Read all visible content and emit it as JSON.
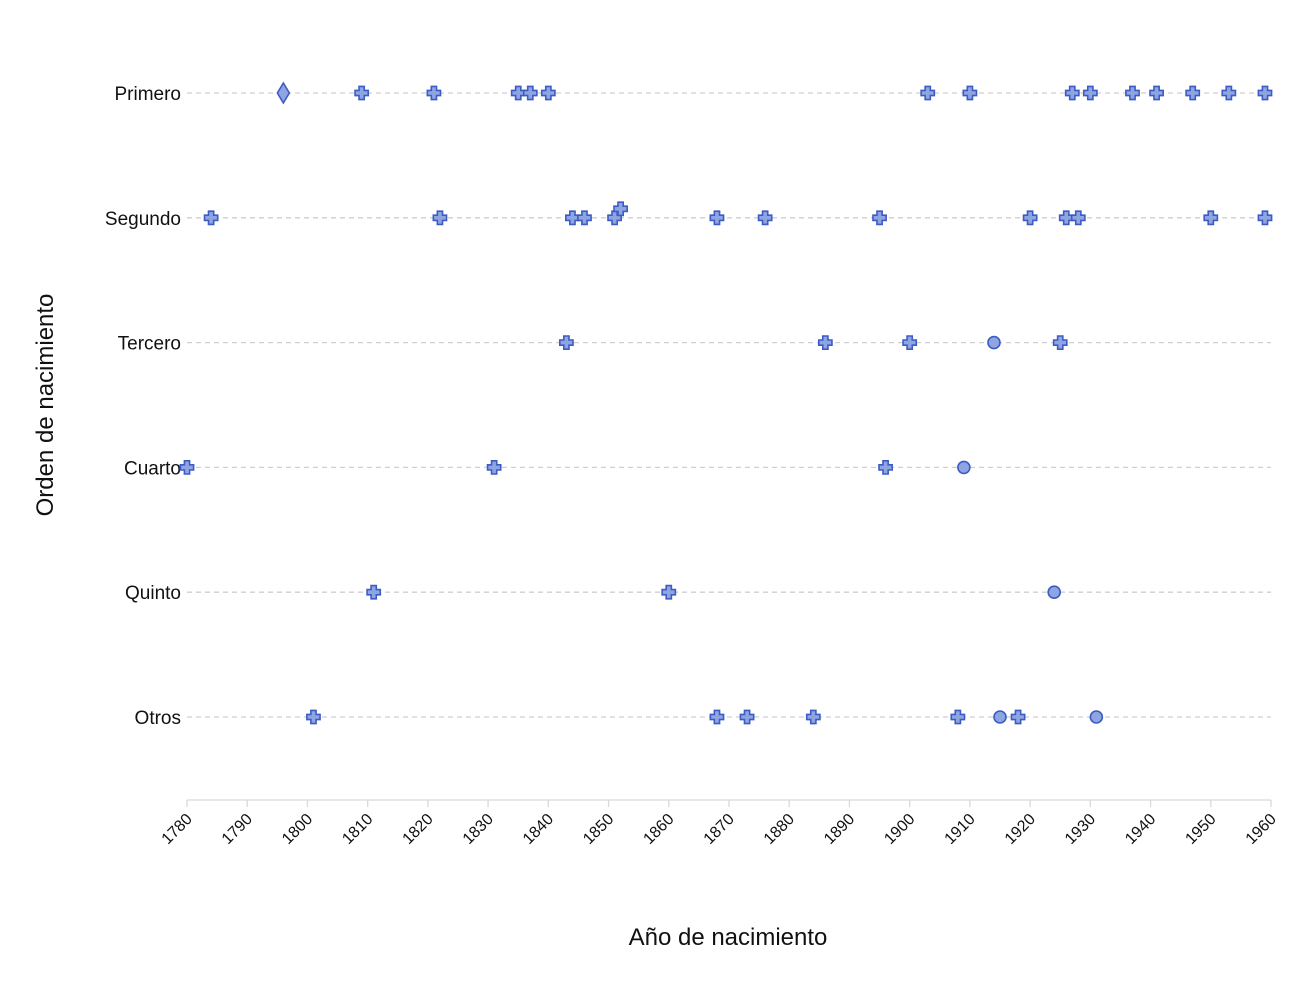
{
  "chart_data": {
    "type": "scatter",
    "title": "",
    "xlabel": "Año de nacimiento",
    "ylabel": "Orden de nacimiento",
    "xlim": [
      1780,
      1960
    ],
    "xticks": [
      1780,
      1790,
      1800,
      1810,
      1820,
      1830,
      1840,
      1850,
      1860,
      1870,
      1880,
      1890,
      1900,
      1910,
      1920,
      1930,
      1940,
      1950,
      1960
    ],
    "categories": [
      "Primero",
      "Segundo",
      "Tercero",
      "Cuarto",
      "Quinto",
      "Otros"
    ],
    "grid": true,
    "colors": {
      "fill": "#8fa5e2",
      "stroke": "#3c5cc4"
    },
    "points": [
      {
        "category": "Primero",
        "x": 1796,
        "marker": "diamond"
      },
      {
        "category": "Primero",
        "x": 1809,
        "marker": "cross"
      },
      {
        "category": "Primero",
        "x": 1821,
        "marker": "cross"
      },
      {
        "category": "Primero",
        "x": 1835,
        "marker": "cross"
      },
      {
        "category": "Primero",
        "x": 1837,
        "marker": "cross"
      },
      {
        "category": "Primero",
        "x": 1840,
        "marker": "cross"
      },
      {
        "category": "Primero",
        "x": 1903,
        "marker": "cross"
      },
      {
        "category": "Primero",
        "x": 1910,
        "marker": "cross"
      },
      {
        "category": "Primero",
        "x": 1927,
        "marker": "cross"
      },
      {
        "category": "Primero",
        "x": 1930,
        "marker": "cross"
      },
      {
        "category": "Primero",
        "x": 1937,
        "marker": "cross"
      },
      {
        "category": "Primero",
        "x": 1941,
        "marker": "cross"
      },
      {
        "category": "Primero",
        "x": 1947,
        "marker": "cross"
      },
      {
        "category": "Primero",
        "x": 1953,
        "marker": "cross"
      },
      {
        "category": "Primero",
        "x": 1959,
        "marker": "cross"
      },
      {
        "category": "Segundo",
        "x": 1784,
        "marker": "cross"
      },
      {
        "category": "Segundo",
        "x": 1822,
        "marker": "cross"
      },
      {
        "category": "Segundo",
        "x": 1844,
        "marker": "cross"
      },
      {
        "category": "Segundo",
        "x": 1846,
        "marker": "cross"
      },
      {
        "category": "Segundo",
        "x": 1851,
        "marker": "cross"
      },
      {
        "category": "Segundo",
        "x": 1852,
        "marker": "cross",
        "offset": 1
      },
      {
        "category": "Segundo",
        "x": 1868,
        "marker": "cross"
      },
      {
        "category": "Segundo",
        "x": 1876,
        "marker": "cross"
      },
      {
        "category": "Segundo",
        "x": 1895,
        "marker": "cross"
      },
      {
        "category": "Segundo",
        "x": 1920,
        "marker": "cross"
      },
      {
        "category": "Segundo",
        "x": 1926,
        "marker": "cross"
      },
      {
        "category": "Segundo",
        "x": 1928,
        "marker": "cross"
      },
      {
        "category": "Segundo",
        "x": 1950,
        "marker": "cross"
      },
      {
        "category": "Segundo",
        "x": 1959,
        "marker": "cross"
      },
      {
        "category": "Tercero",
        "x": 1843,
        "marker": "cross"
      },
      {
        "category": "Tercero",
        "x": 1886,
        "marker": "cross"
      },
      {
        "category": "Tercero",
        "x": 1900,
        "marker": "cross"
      },
      {
        "category": "Tercero",
        "x": 1914,
        "marker": "circle"
      },
      {
        "category": "Tercero",
        "x": 1925,
        "marker": "cross"
      },
      {
        "category": "Cuarto",
        "x": 1780,
        "marker": "cross"
      },
      {
        "category": "Cuarto",
        "x": 1831,
        "marker": "cross"
      },
      {
        "category": "Cuarto",
        "x": 1896,
        "marker": "cross"
      },
      {
        "category": "Cuarto",
        "x": 1909,
        "marker": "circle"
      },
      {
        "category": "Quinto",
        "x": 1811,
        "marker": "cross"
      },
      {
        "category": "Quinto",
        "x": 1860,
        "marker": "cross"
      },
      {
        "category": "Quinto",
        "x": 1924,
        "marker": "circle"
      },
      {
        "category": "Otros",
        "x": 1801,
        "marker": "cross"
      },
      {
        "category": "Otros",
        "x": 1868,
        "marker": "cross"
      },
      {
        "category": "Otros",
        "x": 1873,
        "marker": "cross"
      },
      {
        "category": "Otros",
        "x": 1884,
        "marker": "cross"
      },
      {
        "category": "Otros",
        "x": 1908,
        "marker": "cross"
      },
      {
        "category": "Otros",
        "x": 1915,
        "marker": "circle"
      },
      {
        "category": "Otros",
        "x": 1918,
        "marker": "cross"
      },
      {
        "category": "Otros",
        "x": 1931,
        "marker": "circle"
      }
    ]
  }
}
